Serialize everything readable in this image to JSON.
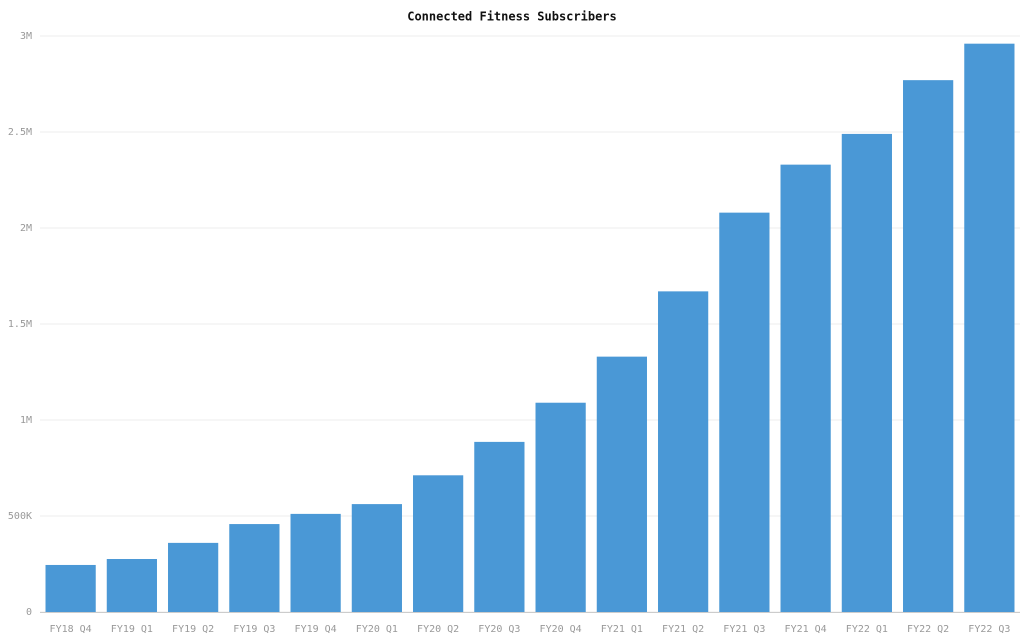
{
  "chart_data": {
    "type": "bar",
    "title": "Connected Fitness Subscribers",
    "categories": [
      "FY18 Q4",
      "FY19 Q1",
      "FY19 Q2",
      "FY19 Q3",
      "FY19 Q4",
      "FY20 Q1",
      "FY20 Q2",
      "FY20 Q3",
      "FY20 Q4",
      "FY21 Q1",
      "FY21 Q2",
      "FY21 Q3",
      "FY21 Q4",
      "FY22 Q1",
      "FY22 Q2",
      "FY22 Q3"
    ],
    "values": [
      245000,
      276000,
      360000,
      458000,
      511000,
      562000,
      712000,
      886000,
      1090000,
      1330000,
      1670000,
      2080000,
      2330000,
      2490000,
      2770000,
      2960000
    ],
    "color": "#4a98d6",
    "ylim": [
      0,
      3000000
    ],
    "yticks": [
      0,
      {
        "value": 500000,
        "label": "500K"
      },
      {
        "value": 1000000,
        "label": "1M"
      },
      {
        "value": 1500000,
        "label": "1.5M"
      },
      {
        "value": 2000000,
        "label": "2M"
      },
      {
        "value": 2500000,
        "label": "2.5M"
      },
      {
        "value": 3000000,
        "label": "3M"
      }
    ],
    "grid": true
  }
}
